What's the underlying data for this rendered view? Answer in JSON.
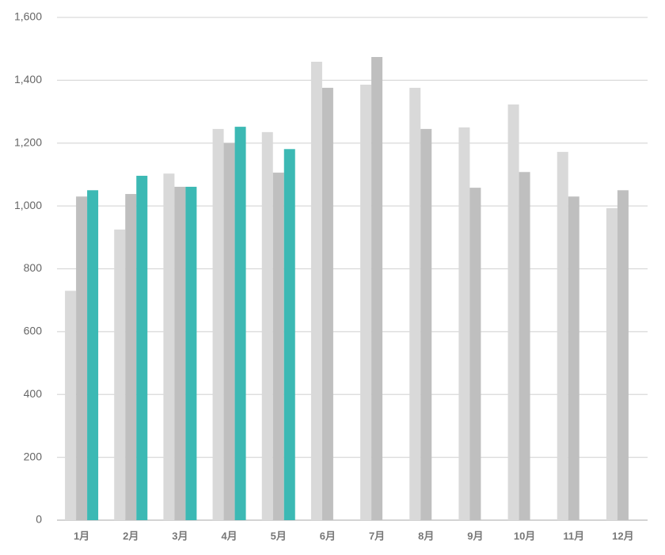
{
  "chart_data": {
    "type": "bar",
    "categories": [
      "1月",
      "2月",
      "3月",
      "4月",
      "5月",
      "6月",
      "7月",
      "8月",
      "9月",
      "10月",
      "11月",
      "12月"
    ],
    "series": [
      {
        "color": "#d9d9d9",
        "values": [
          730,
          925,
          1103,
          1245,
          1235,
          1459,
          1386,
          1376,
          1250,
          1323,
          1172,
          993
        ]
      },
      {
        "color": "#bfbfbf",
        "values": [
          1030,
          1038,
          1061,
          1200,
          1106,
          1376,
          1474,
          1245,
          1058,
          1108,
          1030,
          1050
        ]
      },
      {
        "color": "#3cb9b4",
        "values": [
          1050,
          1096,
          1061,
          1252,
          1181,
          null,
          null,
          null,
          null,
          null,
          null,
          null
        ]
      }
    ],
    "ylim": [
      0,
      1600
    ],
    "yticks": [
      0,
      200,
      400,
      600,
      800,
      {
        "value": 1000,
        "label": "1,000"
      },
      {
        "value": 1200,
        "label": "1,200"
      },
      {
        "value": 1400,
        "label": "1,400"
      },
      {
        "value": 1600,
        "label": "1,600"
      }
    ],
    "grid": true
  }
}
